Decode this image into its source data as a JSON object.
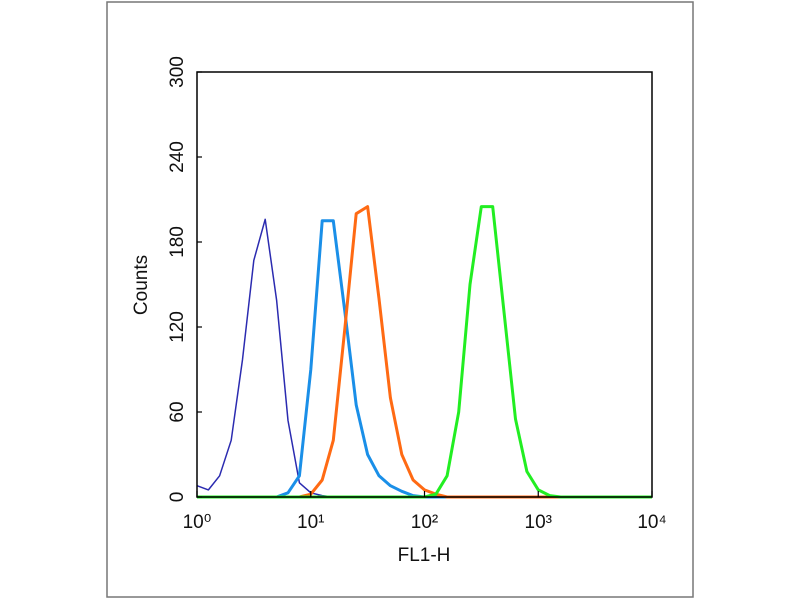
{
  "chart_data": {
    "type": "line",
    "x_label": "FL1-H",
    "y_label": "Counts",
    "xscale": "log",
    "x": [
      1,
      1.26,
      1.58,
      2,
      2.51,
      3.16,
      3.98,
      5.01,
      6.31,
      7.94,
      10,
      12.6,
      15.8,
      20,
      25.1,
      31.6,
      39.8,
      50.1,
      63.1,
      79.4,
      100,
      126,
      158,
      200,
      251,
      316,
      398,
      501,
      631,
      794,
      1000,
      1260,
      1580,
      2000,
      2510,
      3160,
      3980,
      5010,
      6310,
      7940,
      10000
    ],
    "xlim": [
      1,
      10000
    ],
    "xticks": [
      {
        "value": 1,
        "label": "10⁰"
      },
      {
        "value": 10,
        "label": "10¹"
      },
      {
        "value": 100,
        "label": "10²"
      },
      {
        "value": 1000,
        "label": "10³"
      },
      {
        "value": 10000,
        "label": "10⁴"
      }
    ],
    "ylim": [
      0,
      300
    ],
    "yticks": [
      0,
      60,
      120,
      180,
      240,
      300
    ],
    "series": [
      {
        "color": "#2b2bb0",
        "width": 1.5,
        "values": [
          8,
          5,
          15,
          40,
          97,
          167,
          196,
          139,
          54,
          10,
          3,
          1,
          0,
          0,
          0,
          0,
          0,
          0,
          0,
          0,
          0,
          0,
          0,
          0,
          0,
          0,
          0,
          0,
          0,
          0,
          0,
          0,
          0,
          0,
          0,
          0,
          0,
          0,
          0,
          0,
          0
        ]
      },
      {
        "color": "#1a8fe8",
        "width": 3,
        "values": [
          0,
          0,
          0,
          0,
          0,
          0,
          0,
          0,
          3,
          15,
          90,
          195,
          195,
          130,
          65,
          30,
          15,
          8,
          4,
          1,
          0,
          0,
          0,
          0,
          0,
          0,
          0,
          0,
          0,
          0,
          0,
          0,
          0,
          0,
          0,
          0,
          0,
          0,
          0,
          0,
          0
        ]
      },
      {
        "color": "#ff6a13",
        "width": 3,
        "values": [
          0,
          0,
          0,
          0,
          0,
          0,
          0,
          0,
          0,
          0,
          2,
          12,
          40,
          120,
          200,
          205,
          140,
          70,
          30,
          12,
          5,
          2,
          0,
          0,
          0,
          0,
          0,
          0,
          0,
          0,
          0,
          0,
          0,
          0,
          0,
          0,
          0,
          0,
          0,
          0,
          0
        ]
      },
      {
        "color": "#22ee22",
        "width": 3,
        "values": [
          0,
          0,
          0,
          0,
          0,
          0,
          0,
          0,
          0,
          0,
          0,
          0,
          0,
          0,
          0,
          0,
          0,
          0,
          0,
          0,
          0,
          2,
          15,
          60,
          150,
          205,
          205,
          130,
          55,
          18,
          5,
          1,
          0,
          0,
          0,
          0,
          0,
          0,
          0,
          0,
          0
        ]
      }
    ]
  }
}
